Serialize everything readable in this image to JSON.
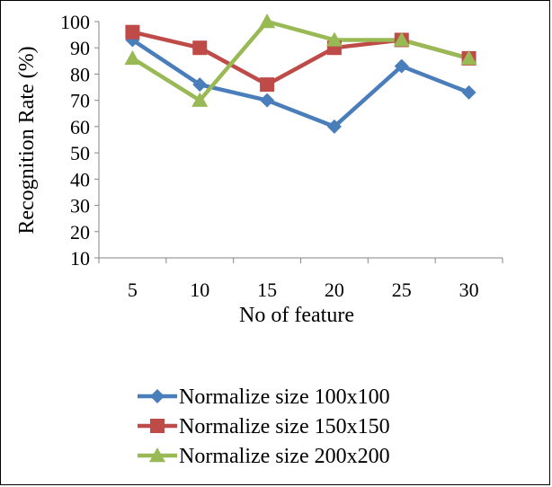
{
  "chart_data": {
    "type": "line",
    "x": [
      5,
      10,
      15,
      20,
      25,
      30
    ],
    "xlabel": "No of feature",
    "ylabel": "Recognition Rate (%)",
    "ylim": [
      10,
      100
    ],
    "yticks": [
      10,
      20,
      30,
      40,
      50,
      60,
      70,
      80,
      90,
      100
    ],
    "grid": false,
    "legend_position": "bottom",
    "series": [
      {
        "name": "Normalize size 100x100",
        "values": [
          93,
          76,
          70,
          60,
          83,
          73
        ],
        "color": "#4a7ebb",
        "marker": "diamond"
      },
      {
        "name": "Normalize size 150x150",
        "values": [
          96,
          90,
          76,
          90,
          93,
          86
        ],
        "color": "#be4b48",
        "marker": "square"
      },
      {
        "name": "Normalize size 200x200",
        "values": [
          86,
          70,
          100,
          93,
          93,
          86
        ],
        "color": "#98b954",
        "marker": "triangle"
      }
    ]
  }
}
